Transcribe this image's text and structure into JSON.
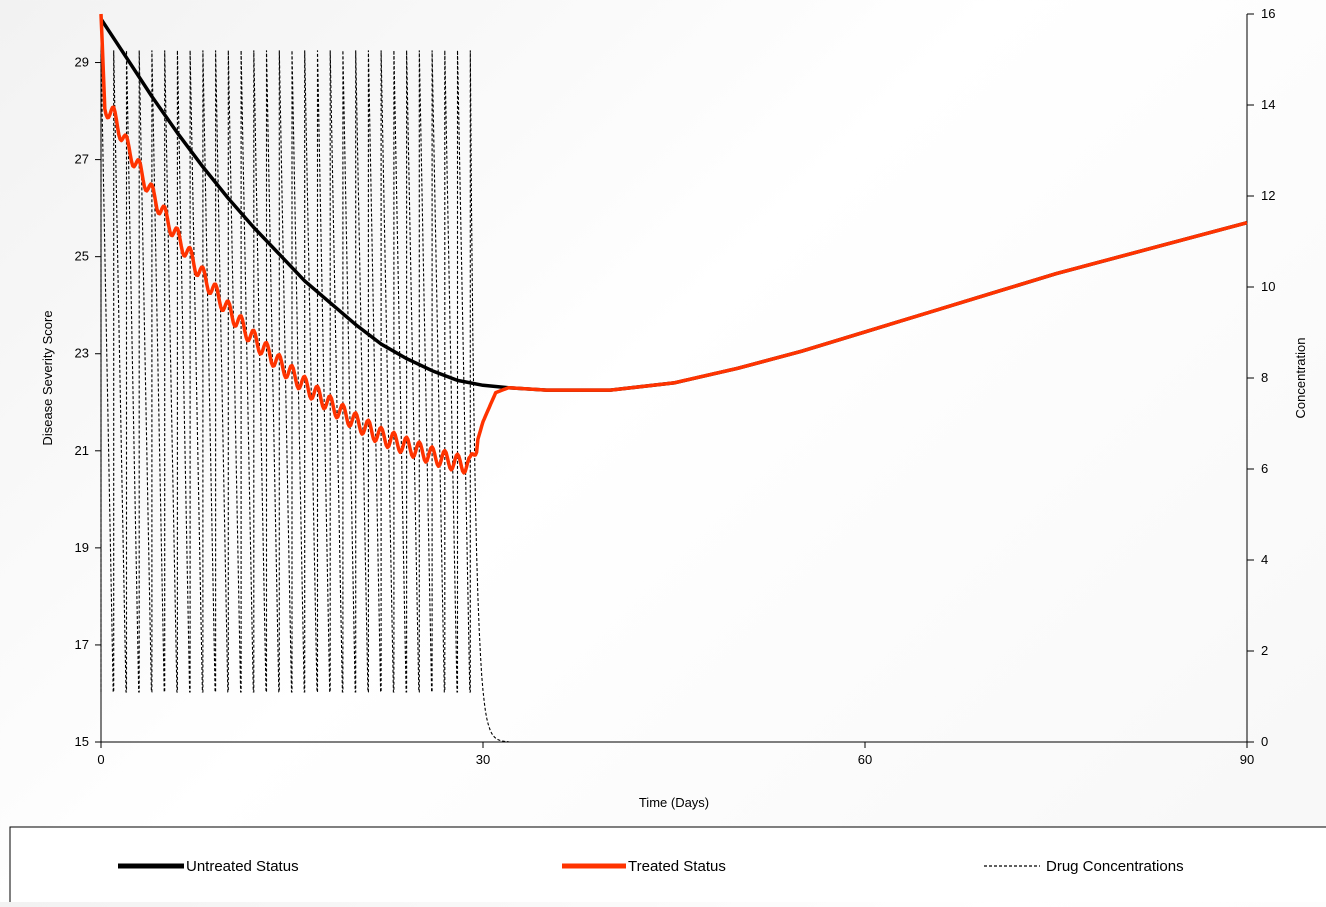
{
  "chart_data": {
    "type": "line",
    "title": "",
    "xlabel": "Time (Days)",
    "ylabel": "Disease Severity Score",
    "y2label": "Concentration",
    "xlim": [
      0,
      90
    ],
    "ylim": [
      15,
      30
    ],
    "y2lim": [
      0,
      16
    ],
    "x_ticks": [
      "0",
      "30",
      "60",
      "90"
    ],
    "y_ticks": [
      "15",
      "17",
      "19",
      "21",
      "23",
      "25",
      "27",
      "29"
    ],
    "y2_ticks": [
      "0",
      "2",
      "4",
      "6",
      "8",
      "10",
      "12",
      "14",
      "16"
    ],
    "grid": false,
    "legend_position": "bottom",
    "series": [
      {
        "name": "Untreated Status",
        "axis": "left",
        "color": "#000000",
        "style": "solid",
        "x": [
          0,
          2,
          4,
          6,
          8,
          10,
          12,
          14,
          16,
          18,
          20,
          22,
          24,
          26,
          28,
          30,
          32,
          35,
          40,
          45,
          50,
          55,
          60,
          65,
          70,
          75,
          80,
          85,
          90
        ],
        "y": [
          29.9,
          29.1,
          28.3,
          27.55,
          26.85,
          26.2,
          25.6,
          25.05,
          24.5,
          24.05,
          23.6,
          23.2,
          22.9,
          22.65,
          22.45,
          22.35,
          22.3,
          22.25,
          22.25,
          22.4,
          22.7,
          23.05,
          23.45,
          23.85,
          24.25,
          24.65,
          25.0,
          25.35,
          25.7
        ]
      },
      {
        "name": "Treated Status",
        "axis": "left",
        "color": "#ff3300",
        "style": "solid",
        "x": [
          0,
          0.3,
          1,
          2,
          4,
          6,
          8,
          10,
          12,
          14,
          16,
          18,
          20,
          22,
          24,
          26,
          28,
          29,
          30,
          31,
          32,
          35,
          40,
          45,
          50,
          55,
          60,
          65,
          70,
          75,
          80,
          85,
          90
        ],
        "y": [
          30.0,
          28.1,
          27.9,
          27.3,
          26.3,
          25.4,
          24.6,
          23.9,
          23.3,
          22.8,
          22.35,
          21.95,
          21.6,
          21.3,
          21.1,
          20.9,
          20.75,
          20.7,
          21.6,
          22.2,
          22.3,
          22.25,
          22.25,
          22.4,
          22.7,
          23.05,
          23.45,
          23.85,
          24.25,
          24.65,
          25.0,
          25.35,
          25.7
        ]
      },
      {
        "name": "Drug Concentrations",
        "axis": "right",
        "color": "#000000",
        "style": "dashed",
        "dose_days": [
          0,
          1,
          2,
          3,
          4,
          5,
          6,
          7,
          8,
          9,
          10,
          11,
          12,
          13,
          14,
          15,
          16,
          17,
          18,
          19,
          20,
          21,
          22,
          23,
          24,
          25,
          26,
          27,
          28,
          29
        ],
        "peak": 15.2,
        "trough": 1.1,
        "washout_end_day": 32
      }
    ]
  }
}
